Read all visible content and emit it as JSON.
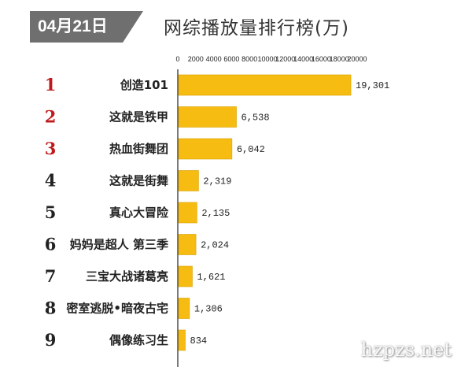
{
  "header": {
    "date": "04月21日",
    "title": "网综播放量排行榜(万)"
  },
  "watermark": "hzpzs.net",
  "colors": {
    "bar": "#f6bc12",
    "rank_top": "#c0191b",
    "rank_rest": "#222222"
  },
  "chart_data": {
    "type": "bar",
    "orientation": "horizontal",
    "title": "网综播放量排行榜(万)",
    "xlim": [
      0,
      20000
    ],
    "x_ticks": [
      "0",
      "2000",
      "4000",
      "6000",
      "8000",
      "10000",
      "12000",
      "14000",
      "16000",
      "18000",
      "20000"
    ],
    "ranks": [
      "1",
      "2",
      "3",
      "4",
      "5",
      "6",
      "7",
      "8",
      "9"
    ],
    "categories": [
      "创造101",
      "这就是铁甲",
      "热血街舞团",
      "这就是街舞",
      "真心大冒险",
      "妈妈是超人 第三季",
      "三宝大战诸葛亮",
      "密室逃脱•暗夜古宅",
      "偶像练习生"
    ],
    "values": [
      19301,
      6538,
      6042,
      2319,
      2135,
      2024,
      1621,
      1306,
      834
    ],
    "value_labels": [
      "19,301",
      "6,538",
      "6,042",
      "2,319",
      "2,135",
      "2,024",
      "1,621",
      "1,306",
      "834"
    ]
  }
}
